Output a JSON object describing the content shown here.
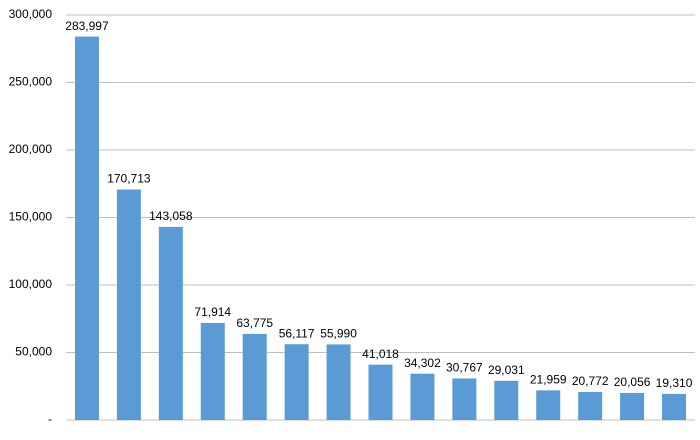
{
  "chart_data": {
    "type": "bar",
    "categories": [
      null,
      null,
      null,
      null,
      null,
      null,
      null,
      null,
      null,
      null,
      null,
      null,
      null,
      null,
      null
    ],
    "values": [
      283997,
      170713,
      143058,
      71914,
      63775,
      56117,
      55990,
      41018,
      34302,
      30767,
      29031,
      21959,
      20772,
      20056,
      19310
    ],
    "value_labels": [
      "283,997",
      "170,713",
      "143,058",
      "71,914",
      "63,775",
      "56,117",
      "55,990",
      "41,018",
      "34,302",
      "30,767",
      "29,031",
      "21,959",
      "20,772",
      "20,056",
      "19,310"
    ],
    "color": "#5b9bd5",
    "ylim": [
      0,
      300000
    ],
    "yticks": [
      {
        "value": 0,
        "label": "-"
      },
      {
        "value": 50000,
        "label": "50,000"
      },
      {
        "value": 100000,
        "label": "100,000"
      },
      {
        "value": 150000,
        "label": "150,000"
      },
      {
        "value": 200000,
        "label": "200,000"
      },
      {
        "value": 250000,
        "label": "250,000"
      },
      {
        "value": 300000,
        "label": "300,000"
      }
    ],
    "grid": true
  }
}
